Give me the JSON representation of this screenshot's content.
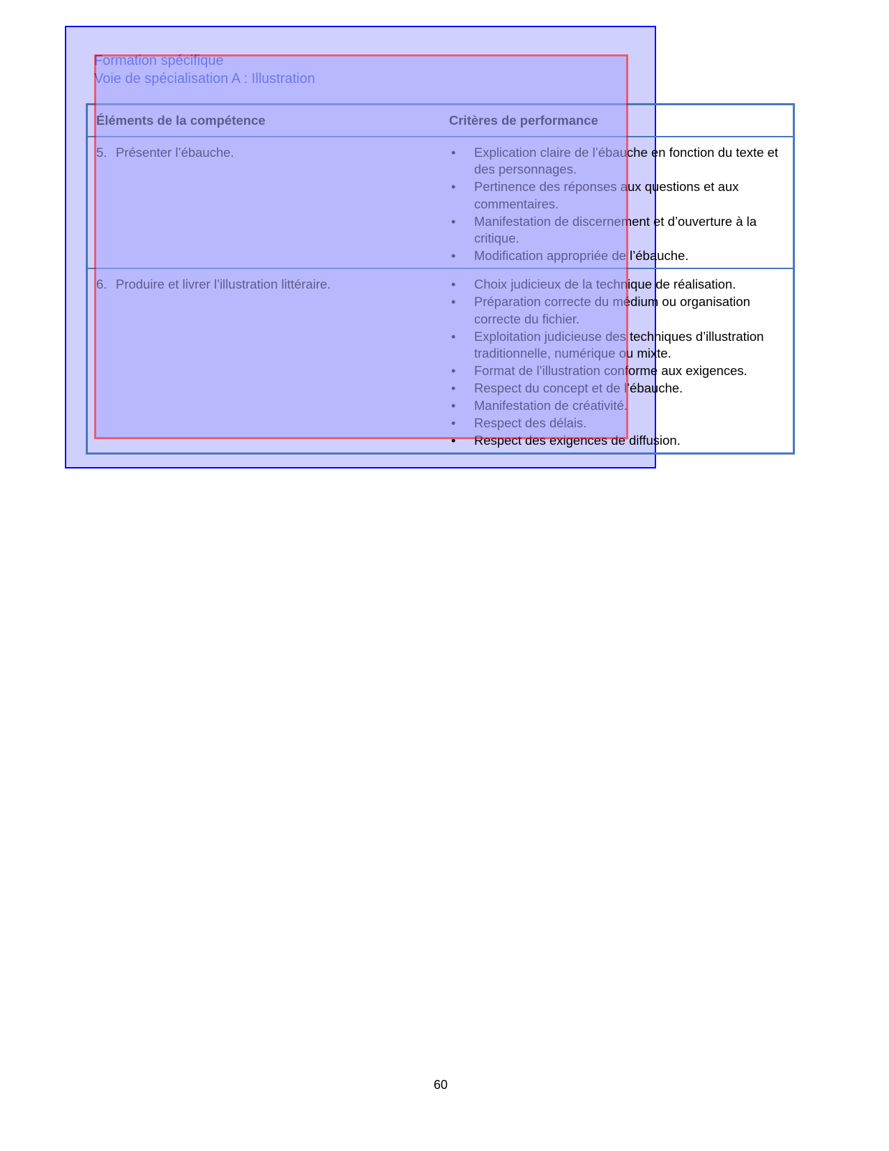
{
  "header": {
    "line1": "Formation spécifique",
    "line2": "Voie de spécialisation A : Illustration"
  },
  "table": {
    "columns": [
      "Éléments de la compétence",
      "Critères de performance"
    ],
    "rows": [
      {
        "number": "5.",
        "element": "Présenter l’ébauche.",
        "criteria": [
          "Explication claire de l’ébauche en fonction du texte et des personnages.",
          "Pertinence des réponses aux questions et aux commentaires.",
          "Manifestation de discernement et d’ouverture à la critique.",
          "Modification appropriée de l’ébauche."
        ]
      },
      {
        "number": "6.",
        "element": "Produire et livrer l’illustration littéraire.",
        "criteria": [
          "Choix judicieux de la technique de réalisation.",
          "Préparation correcte du médium ou organisation correcte du fichier.",
          "Exploitation judicieuse des techniques d’illustration traditionnelle, numérique ou mixte.",
          "Format de l’illustration conforme aux exigences.",
          "Respect du concept et de l’ébauche.",
          "Manifestation de créativité.",
          "Respect des délais.",
          "Respect des exigences de diffusion."
        ]
      }
    ]
  },
  "bullet_glyph": "•",
  "page_number": "60",
  "colors": {
    "overlay_outer": "#d0d0ff",
    "overlay_outer_border": "#0000ff",
    "overlay_inner_border": "#ff0000",
    "table_border": "#4a76c0"
  }
}
